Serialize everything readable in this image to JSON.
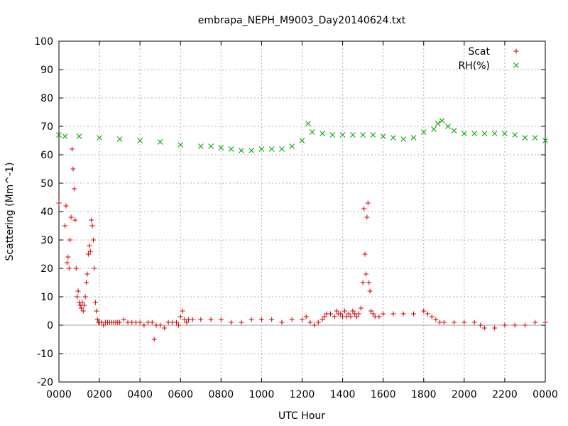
{
  "chart_data": {
    "type": "scatter",
    "title": "embrapa_NEPH_M9003_Day20140624.txt",
    "xlabel": "UTC Hour",
    "ylabel": "Scattering (Mm^-1)",
    "xlim": [
      0,
      2400
    ],
    "ylim": [
      -20,
      100
    ],
    "grid": true,
    "legend_position": "top-right",
    "x_ticks": [
      "0000",
      "0200",
      "0400",
      "0600",
      "0800",
      "1000",
      "1200",
      "1400",
      "1600",
      "1800",
      "2000",
      "2200",
      "0000"
    ],
    "y_ticks": [
      "-20",
      "-10",
      "0",
      "10",
      "20",
      "30",
      "40",
      "50",
      "60",
      "70",
      "80",
      "90",
      "100"
    ],
    "series": [
      {
        "name": "Scat",
        "marker": "+",
        "color": "#d00000",
        "x": [
          0,
          30,
          35,
          40,
          45,
          50,
          55,
          60,
          65,
          70,
          75,
          80,
          85,
          90,
          95,
          100,
          105,
          110,
          115,
          120,
          125,
          130,
          135,
          140,
          145,
          150,
          155,
          160,
          165,
          170,
          175,
          180,
          185,
          190,
          195,
          200,
          210,
          220,
          230,
          240,
          250,
          260,
          270,
          280,
          290,
          300,
          320,
          340,
          360,
          380,
          400,
          420,
          440,
          460,
          470,
          480,
          500,
          520,
          540,
          560,
          580,
          590,
          600,
          610,
          620,
          630,
          640,
          660,
          700,
          750,
          800,
          850,
          900,
          950,
          1000,
          1050,
          1100,
          1150,
          1200,
          1220,
          1240,
          1260,
          1280,
          1300,
          1310,
          1320,
          1340,
          1360,
          1370,
          1380,
          1390,
          1400,
          1410,
          1420,
          1430,
          1440,
          1450,
          1460,
          1470,
          1480,
          1490,
          1500,
          1505,
          1510,
          1515,
          1520,
          1525,
          1530,
          1535,
          1540,
          1550,
          1560,
          1580,
          1600,
          1650,
          1700,
          1750,
          1800,
          1820,
          1840,
          1860,
          1880,
          1900,
          1950,
          2000,
          2050,
          2080,
          2100,
          2150,
          2200,
          2250,
          2300,
          2350,
          2400
        ],
        "y": [
          43,
          35,
          42,
          22,
          24,
          20,
          30,
          38,
          62,
          55,
          48,
          37,
          20,
          10,
          12,
          8,
          7,
          6,
          8,
          5,
          7,
          10,
          15,
          18,
          25,
          28,
          26,
          37,
          35,
          30,
          20,
          8,
          5,
          2,
          1,
          1,
          1,
          0,
          1,
          1,
          1,
          1,
          1,
          1,
          1,
          1,
          2,
          1,
          1,
          1,
          1,
          0,
          1,
          1,
          -5,
          0,
          0,
          -1,
          1,
          1,
          1,
          0,
          3,
          5,
          2,
          1,
          2,
          2,
          2,
          2,
          2,
          1,
          1,
          2,
          2,
          2,
          1,
          2,
          2,
          3,
          1,
          0,
          1,
          2,
          3,
          4,
          4,
          3,
          5,
          4,
          4,
          3,
          5,
          3,
          4,
          3,
          5,
          4,
          3,
          4,
          6,
          15,
          41,
          25,
          18,
          38,
          43,
          15,
          12,
          5,
          4,
          3,
          3,
          4,
          4,
          4,
          4,
          5,
          4,
          3,
          2,
          1,
          1,
          1,
          1,
          1,
          0,
          -1,
          -1,
          0,
          0,
          0,
          1,
          1
        ]
      },
      {
        "name": "RH(%)",
        "marker": "x",
        "color": "#00a000",
        "x": [
          0,
          30,
          100,
          200,
          300,
          400,
          500,
          600,
          700,
          750,
          800,
          850,
          900,
          950,
          1000,
          1050,
          1100,
          1150,
          1200,
          1230,
          1250,
          1300,
          1350,
          1400,
          1450,
          1500,
          1550,
          1600,
          1650,
          1700,
          1750,
          1800,
          1850,
          1870,
          1890,
          1920,
          1950,
          2000,
          2050,
          2100,
          2150,
          2200,
          2250,
          2300,
          2350,
          2400
        ],
        "y": [
          67,
          66.5,
          66.5,
          66,
          65.5,
          65,
          64.5,
          63.5,
          63,
          63,
          62.5,
          62,
          61.5,
          61.5,
          62,
          62,
          62,
          63,
          65,
          71,
          68,
          67.5,
          67,
          67,
          67,
          67,
          67,
          66.5,
          66,
          65.5,
          66,
          68,
          69,
          71,
          72,
          70,
          68.5,
          67.5,
          67.5,
          67.5,
          67.5,
          67.5,
          67,
          66,
          66,
          65
        ]
      }
    ],
    "reference_lines": [
      {
        "y": 0,
        "color": "#a0a0a0"
      }
    ]
  }
}
